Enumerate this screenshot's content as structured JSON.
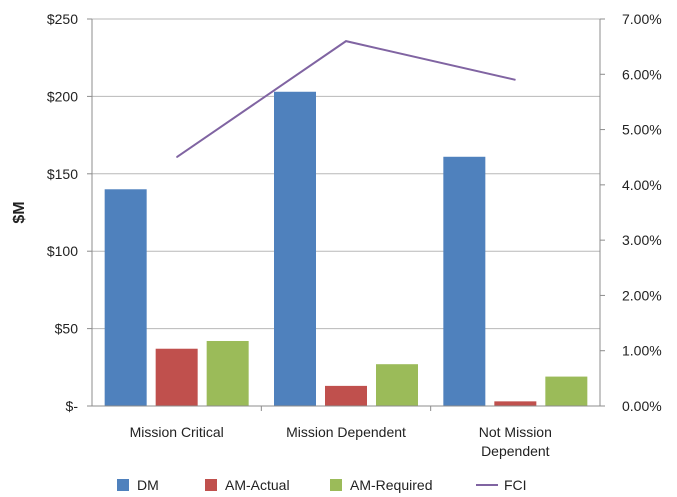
{
  "chart_data": {
    "type": "bar",
    "categories": [
      [
        "Mission Critical"
      ],
      [
        "Mission Dependent"
      ],
      [
        "Not Mission",
        "Dependent"
      ]
    ],
    "series": [
      {
        "name": "DM",
        "type": "bar",
        "axis": "left",
        "color": "#4F81BD",
        "values": [
          140,
          203,
          161
        ]
      },
      {
        "name": "AM-Actual",
        "type": "bar",
        "axis": "left",
        "color": "#C0504D",
        "values": [
          37,
          13,
          3
        ]
      },
      {
        "name": "AM-Required",
        "type": "bar",
        "axis": "left",
        "color": "#9BBB59",
        "values": [
          42,
          27,
          19
        ]
      },
      {
        "name": "FCI",
        "type": "line",
        "axis": "right",
        "color": "#8064A2",
        "values": [
          4.5,
          6.6,
          5.9
        ]
      }
    ],
    "ylabel": "$M",
    "ylim": [
      0,
      250
    ],
    "y_ticks": [
      "$-",
      "$50",
      "$100",
      "$150",
      "$200",
      "$250"
    ],
    "y_tick_values": [
      0,
      50,
      100,
      150,
      200,
      250
    ],
    "y2lim": [
      0,
      7
    ],
    "y2_ticks": [
      "0.00%",
      "1.00%",
      "2.00%",
      "3.00%",
      "4.00%",
      "5.00%",
      "6.00%",
      "7.00%"
    ],
    "y2_tick_values": [
      0,
      1,
      2,
      3,
      4,
      5,
      6,
      7
    ],
    "grid": true,
    "legend_position": "bottom"
  }
}
